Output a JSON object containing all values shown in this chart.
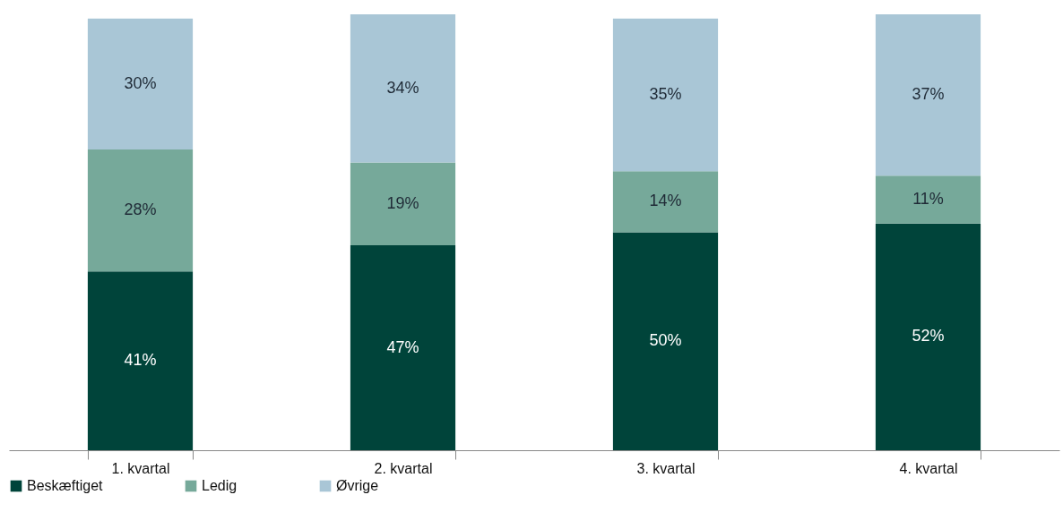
{
  "chart_data": {
    "type": "bar",
    "stacked": true,
    "categories": [
      "1. kvartal",
      "2. kvartal",
      "3. kvartal",
      "4. kvartal"
    ],
    "series": [
      {
        "name": "Beskæftiget",
        "color": "#00443a",
        "values": [
          41,
          47,
          50,
          52
        ],
        "value_labels": [
          "41%",
          "47%",
          "50%",
          "52%"
        ]
      },
      {
        "name": "Ledig",
        "color": "#76a99a",
        "values": [
          28,
          19,
          14,
          11
        ],
        "value_labels": [
          "28%",
          "19%",
          "14%",
          "11%"
        ]
      },
      {
        "name": "Øvrige",
        "color": "#a9c6d6",
        "values": [
          30,
          34,
          35,
          37
        ],
        "value_labels": [
          "30%",
          "34%",
          "35%",
          "37%"
        ]
      }
    ],
    "tick_labels": "x",
    "grid": false,
    "legend": "bottom"
  }
}
